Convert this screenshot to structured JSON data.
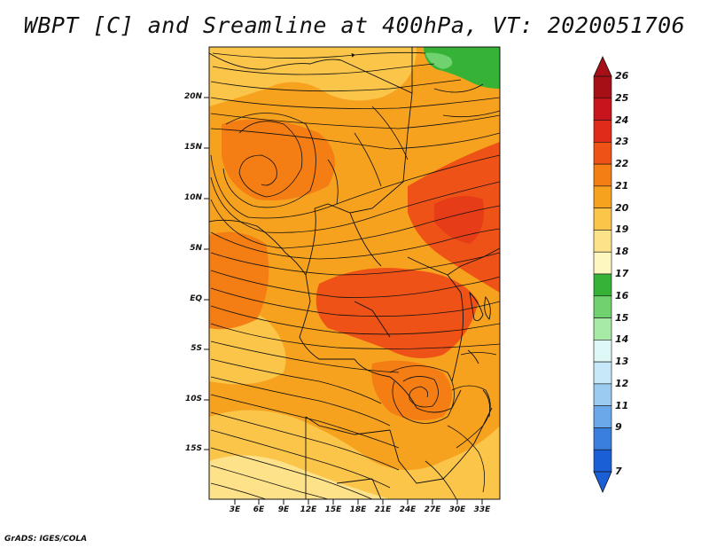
{
  "title": "WBPT [C] and Sreamline at 400hPa, VT: 2020051706",
  "credit": "GrADS: IGES/COLA",
  "map": {
    "lat_ticks": [
      "20N",
      "15N",
      "10N",
      "5N",
      "EQ",
      "5S",
      "10S",
      "15S"
    ],
    "lon_ticks": [
      "3E",
      "6E",
      "9E",
      "12E",
      "15E",
      "18E",
      "21E",
      "24E",
      "27E",
      "30E",
      "33E"
    ]
  },
  "colorbar": {
    "labels": [
      "26",
      "25",
      "24",
      "23",
      "22",
      "21",
      "20",
      "19",
      "18",
      "17",
      "16",
      "15",
      "14",
      "13",
      "12",
      "11",
      "9",
      "7"
    ],
    "colors": [
      "#a50f15",
      "#c8141c",
      "#e02a1a",
      "#ee5216",
      "#f47d14",
      "#f7a21e",
      "#fbc54a",
      "#fde28a",
      "#fef8c0",
      "#36b336",
      "#6fd26f",
      "#a6eaa6",
      "#ddf8f6",
      "#c6e8f8",
      "#9ccbf2",
      "#6ba8ea",
      "#3b7fdd",
      "#1a5fd6"
    ]
  }
}
